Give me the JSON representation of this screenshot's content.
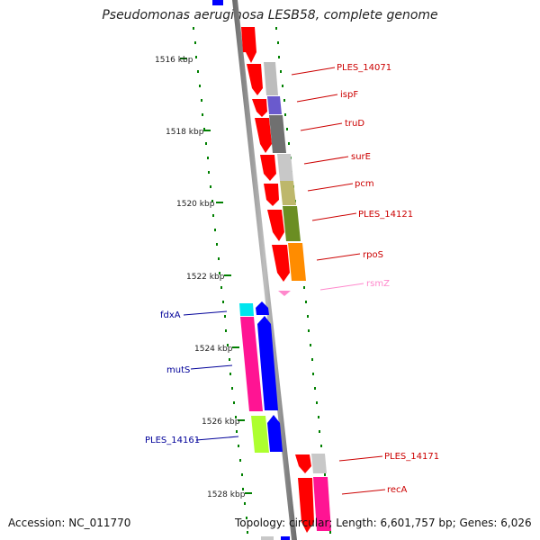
{
  "title": "Pseudomonas aeruginosa LESB58, complete genome",
  "accession_text": "Accession: NC_011770",
  "summary_text": "Topology: circular; Length: 6,601,757 bp; Genes: 6,026",
  "colors": {
    "forward_label": "#cc0000",
    "reverse_label": "#000099",
    "rna_label": "#ff88cc",
    "tick": "#008000",
    "backbone": "#888888"
  },
  "coordinate_ticks": [
    "1516 kbp",
    "1518 kbp",
    "1520 kbp",
    "1522 kbp",
    "1524 kbp",
    "1526 kbp",
    "1528 kbp"
  ],
  "forward_genes": [
    {
      "label": "PLES_14071",
      "arrow_color": "#ff0000",
      "band_color": "#bdbdbd"
    },
    {
      "label": "ispF",
      "arrow_color": "#ff0000",
      "band_color": "#6a5acd"
    },
    {
      "label": "truD",
      "arrow_color": "#ff0000",
      "band_color": "#707070"
    },
    {
      "label": "surE",
      "arrow_color": "#ff0000",
      "band_color": "#c8c8c8"
    },
    {
      "label": "pcm",
      "arrow_color": "#ff0000",
      "band_color": "#bdb76b"
    },
    {
      "label": "PLES_14121",
      "arrow_color": "#ff0000",
      "band_color": "#6b8e23"
    },
    {
      "label": "rpoS",
      "arrow_color": "#ff0000",
      "band_color": "#ff8c00"
    },
    {
      "label": "rsmZ",
      "arrow_color": "#ff88cc",
      "band_color": "#ff88cc"
    },
    {
      "label": "PLES_14171",
      "arrow_color": "#ff0000",
      "band_color": "#c8c8c8"
    },
    {
      "label": "recA",
      "arrow_color": "#ff0000",
      "band_color": "#ff1493"
    }
  ],
  "reverse_genes": [
    {
      "label": "fdxA",
      "arrow_color": "#0000ff",
      "band_color": "#00e5ee"
    },
    {
      "label": "mutS",
      "arrow_color": "#0000ff",
      "band_color": "#ff1493"
    },
    {
      "label": "PLES_14161",
      "arrow_color": "#0000ff",
      "band_color": "#adff2f"
    }
  ]
}
